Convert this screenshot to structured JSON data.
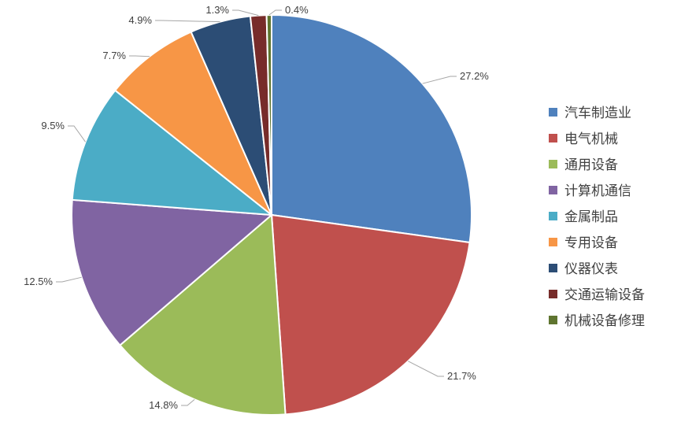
{
  "chart_data": {
    "type": "pie",
    "title": "",
    "legend_position": "right",
    "slices": [
      {
        "label": "汽车制造业",
        "value": 27.2,
        "value_label": "27.2%",
        "color": "#4F81BD"
      },
      {
        "label": "电气机械",
        "value": 21.7,
        "value_label": "21.7%",
        "color": "#C0504D"
      },
      {
        "label": "通用设备",
        "value": 14.8,
        "value_label": "14.8%",
        "color": "#9BBB59"
      },
      {
        "label": "计算机通信",
        "value": 12.5,
        "value_label": "12.5%",
        "color": "#8064A2"
      },
      {
        "label": "金属制品",
        "value": 9.5,
        "value_label": "9.5%",
        "color": "#4BACC6"
      },
      {
        "label": "专用设备",
        "value": 7.7,
        "value_label": "7.7%",
        "color": "#F79646"
      },
      {
        "label": "仪器仪表",
        "value": 4.9,
        "value_label": "4.9%",
        "color": "#2C4D75"
      },
      {
        "label": "交通运输设备",
        "value": 1.3,
        "value_label": "1.3%",
        "color": "#772C2A"
      },
      {
        "label": "机械设备修理",
        "value": 0.4,
        "value_label": "0.4%",
        "color": "#5F7530"
      }
    ]
  }
}
